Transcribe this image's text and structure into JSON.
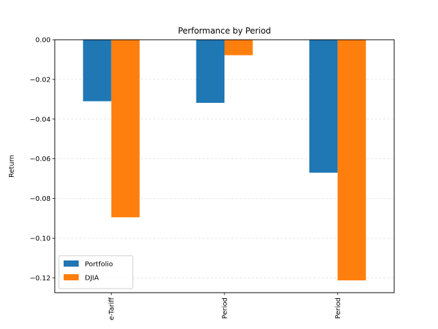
{
  "chart_data": {
    "type": "bar",
    "title": "Performance by Period",
    "xlabel": "",
    "ylabel": "Return",
    "categories": [
      "e-Tariff",
      "Period",
      "Period"
    ],
    "series": [
      {
        "name": "Portfolio",
        "values": [
          -0.031,
          -0.0318,
          -0.067
        ],
        "color": "#1f77b4"
      },
      {
        "name": "DJIA",
        "values": [
          -0.0895,
          -0.0078,
          -0.1213
        ],
        "color": "#ff7f0e"
      }
    ],
    "ylim": [
      -0.1275,
      0.0
    ],
    "yticks": [
      0.0,
      -0.02,
      -0.04,
      -0.06,
      -0.08,
      -0.1,
      -0.12
    ],
    "ytick_labels": [
      "0.00",
      "−0.02",
      "−0.04",
      "−0.06",
      "−0.08",
      "−0.10",
      "−0.12"
    ],
    "grid": {
      "y": true,
      "style": "dashed"
    },
    "legend": {
      "position": "lower-left"
    },
    "xtick_rotation": -90
  }
}
